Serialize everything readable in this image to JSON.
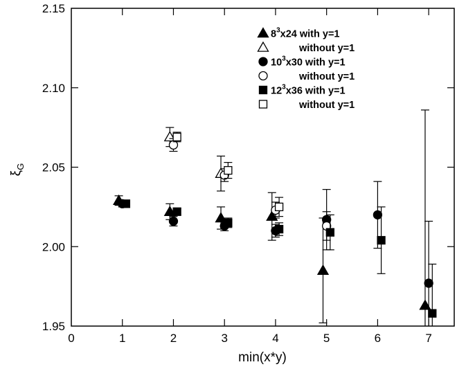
{
  "chart_data": {
    "type": "scatter",
    "xlabel": "min(x*y)",
    "ylabel": "ξ",
    "ylabel_sub": "G",
    "xlim": [
      0,
      7.5
    ],
    "ylim": [
      1.95,
      2.15
    ],
    "x_ticks": [
      0,
      1,
      2,
      3,
      4,
      5,
      6,
      7
    ],
    "y_ticks": [
      1.95,
      2.0,
      2.05,
      2.1,
      2.15
    ],
    "x_tick_labels": [
      "0",
      "1",
      "2",
      "3",
      "4",
      "5",
      "6",
      "7"
    ],
    "y_tick_labels": [
      "1.95",
      "2.00",
      "2.05",
      "2.10",
      "2.15"
    ],
    "grid": false,
    "legend_position": "top-right",
    "error_bars": true,
    "series": [
      {
        "name": "8³x24 with y=1",
        "lattice": "8",
        "exp": "3",
        "rest": "x24 with y=1",
        "marker": "triangle",
        "filled": true,
        "points": [
          {
            "x": 0.93,
            "y": 2.029,
            "err": 0.003
          },
          {
            "x": 1.93,
            "y": 2.022,
            "err": 0.005
          },
          {
            "x": 2.93,
            "y": 2.018,
            "err": 0.007
          },
          {
            "x": 3.93,
            "y": 2.019,
            "err": 0.015
          },
          {
            "x": 4.93,
            "y": 1.985,
            "err": 0.033
          },
          {
            "x": 6.93,
            "y": 1.963,
            "err": 0.123
          }
        ]
      },
      {
        "name": "without y=1",
        "marker": "triangle",
        "filled": false,
        "points": [
          {
            "x": 1.93,
            "y": 2.069,
            "err": 0.006
          },
          {
            "x": 2.93,
            "y": 2.046,
            "err": 0.011
          }
        ]
      },
      {
        "name": "10³x30 with y=1",
        "lattice": "10",
        "exp": "3",
        "rest": "x30 with y=1",
        "marker": "circle",
        "filled": true,
        "points": [
          {
            "x": 1.0,
            "y": 2.027,
            "err": 0.002
          },
          {
            "x": 2.0,
            "y": 2.016,
            "err": 0.003
          },
          {
            "x": 3.0,
            "y": 2.013,
            "err": 0.003
          },
          {
            "x": 4.0,
            "y": 2.01,
            "err": 0.004
          },
          {
            "x": 5.0,
            "y": 2.017,
            "err": 0.019
          },
          {
            "x": 6.0,
            "y": 2.02,
            "err": 0.021
          },
          {
            "x": 7.0,
            "y": 1.977,
            "err": 0.039
          }
        ]
      },
      {
        "name": "without y=1",
        "marker": "circle",
        "filled": false,
        "points": [
          {
            "x": 2.0,
            "y": 2.064,
            "err": 0.004
          },
          {
            "x": 3.0,
            "y": 2.045,
            "err": 0.004
          },
          {
            "x": 4.0,
            "y": 2.023,
            "err": 0.005
          },
          {
            "x": 5.0,
            "y": 2.013,
            "err": 0.009
          }
        ]
      },
      {
        "name": "12³x36 with y=1",
        "lattice": "12",
        "exp": "3",
        "rest": "x36 with y=1",
        "marker": "square",
        "filled": true,
        "points": [
          {
            "x": 1.07,
            "y": 2.027,
            "err": 0.002
          },
          {
            "x": 2.07,
            "y": 2.022,
            "err": 0.002
          },
          {
            "x": 3.07,
            "y": 2.015,
            "err": 0.003
          },
          {
            "x": 4.07,
            "y": 2.011,
            "err": 0.004
          },
          {
            "x": 5.07,
            "y": 2.009,
            "err": 0.011
          },
          {
            "x": 6.07,
            "y": 2.004,
            "err": 0.021
          },
          {
            "x": 7.07,
            "y": 1.958,
            "err": 0.031
          }
        ]
      },
      {
        "name": "without y=1",
        "marker": "square",
        "filled": false,
        "points": [
          {
            "x": 2.07,
            "y": 2.069,
            "err": 0.003
          },
          {
            "x": 3.07,
            "y": 2.048,
            "err": 0.005
          },
          {
            "x": 4.07,
            "y": 2.025,
            "err": 0.006
          }
        ]
      }
    ]
  }
}
